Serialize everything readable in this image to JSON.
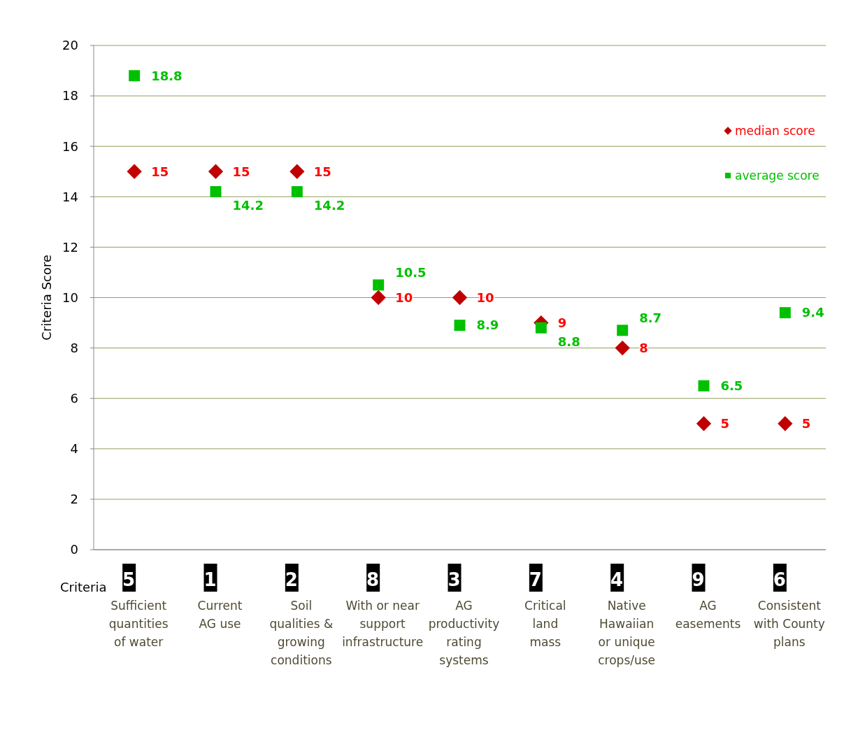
{
  "chart_data": {
    "type": "scatter",
    "xlabel": "Criteria",
    "ylabel": "Criteria  Score",
    "categories": [
      "5\nSufficient\nquantities\nof water",
      "1\nCurrent\nAG use",
      "2\nSoil\nqualities &\ngrowing\nconditions",
      "8\nWith or near\nsupport\ninfrastructure",
      "3\nAG\nproductivity\nrating\nsystems",
      "7\nCritical\nland\nmass",
      "4\nNative\nHawaiian\nor unique\ncrops/use",
      "9\nAG\neasements",
      "6\nConsistent\nwith County\nplans"
    ],
    "series": [
      {
        "name": "median score",
        "color": "#c00000",
        "marker": "diamond",
        "values": [
          15,
          15,
          15,
          10,
          10,
          9,
          8,
          5,
          5
        ]
      },
      {
        "name": "average score",
        "color": "#00c000",
        "marker": "square",
        "values": [
          18.8,
          14.2,
          14.2,
          10.5,
          8.9,
          8.8,
          8.7,
          6.5,
          9.4
        ]
      }
    ],
    "ylim": [
      0,
      20
    ],
    "yticks": [
      0,
      2,
      4,
      6,
      8,
      10,
      12,
      14,
      16,
      18,
      20
    ],
    "grid": "y",
    "legend": "top right",
    "data_labels": true
  }
}
